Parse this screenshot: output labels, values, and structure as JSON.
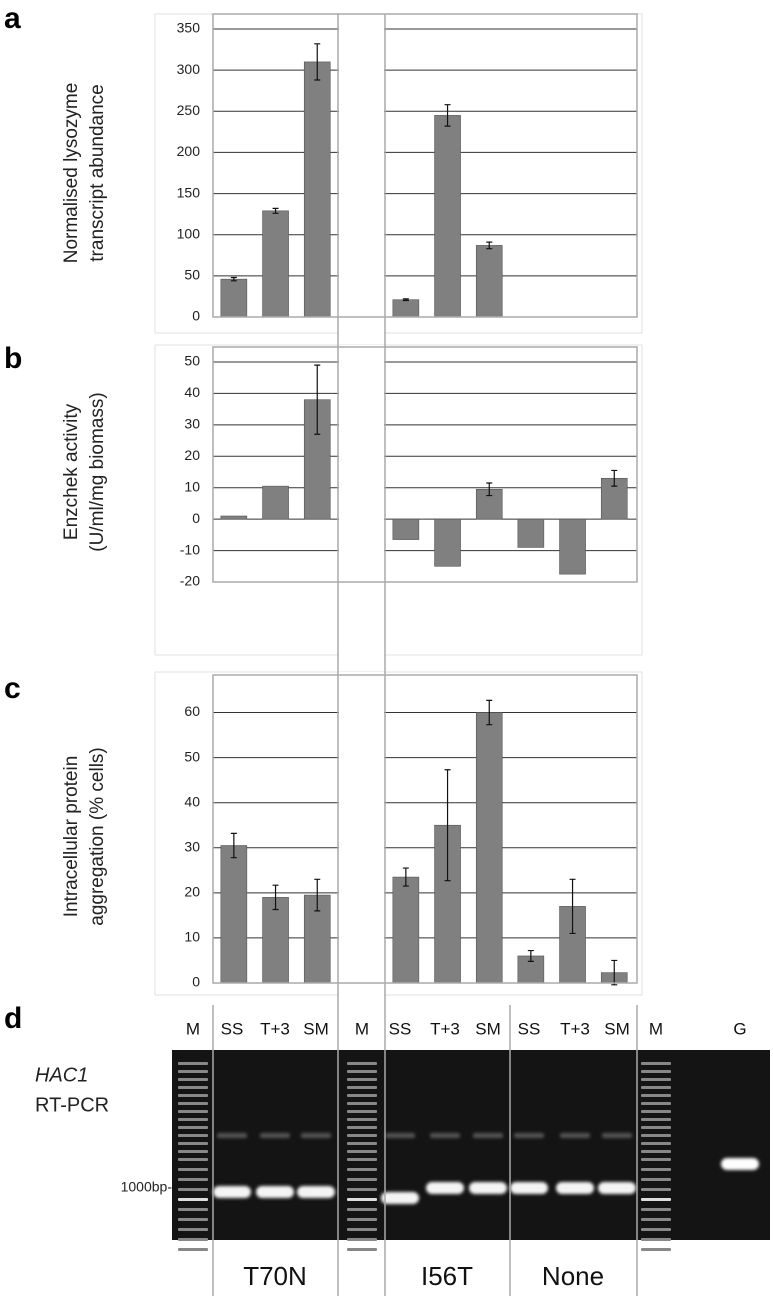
{
  "chart_data": [
    {
      "type": "bar",
      "panel": "a",
      "ylabel": [
        "Normalised lysozyme",
        "transcript abundance"
      ],
      "values": [
        46,
        129,
        310,
        21,
        245,
        87,
        null,
        null,
        null
      ],
      "errors": [
        2,
        3,
        22,
        1,
        13,
        4,
        null,
        null,
        null
      ],
      "color": "#808080",
      "ylim": [
        0,
        350
      ],
      "yticks": [
        0,
        50,
        100,
        150,
        200,
        250,
        300,
        350
      ],
      "grid": true
    },
    {
      "type": "bar",
      "panel": "b",
      "ylabel": [
        "Enzchek activity",
        "(U/ml/mg biomass)"
      ],
      "values": [
        1,
        10.5,
        38,
        -6.5,
        -15,
        9.5,
        -9,
        -17.5,
        13
      ],
      "errors": [
        null,
        null,
        11,
        null,
        null,
        2,
        null,
        null,
        2.5
      ],
      "color": "#808080",
      "ylim": [
        -20,
        50
      ],
      "yticks": [
        -20,
        -10,
        0,
        10,
        20,
        30,
        40,
        50
      ],
      "grid": true
    },
    {
      "type": "bar",
      "panel": "c",
      "ylabel": [
        "Intracellular protein",
        "aggregation (% cells)"
      ],
      "values": [
        30.5,
        19,
        19.5,
        23.5,
        35,
        60,
        6,
        17,
        2.3
      ],
      "errors": [
        2.7,
        2.7,
        3.5,
        2,
        12.3,
        2.7,
        1.2,
        6,
        2.7
      ],
      "color": "#808080",
      "ylim": [
        0,
        65
      ],
      "yticks": [
        0,
        10,
        20,
        30,
        40,
        50,
        60
      ],
      "grid": true
    }
  ],
  "gel": {
    "panel": "d",
    "lanes": [
      "M",
      "SS",
      "T+3",
      "SM",
      "M",
      "SS",
      "T+3",
      "SM",
      "SS",
      "T+3",
      "SM",
      "M",
      "G"
    ],
    "label_lines": [
      "HAC1",
      "RT-PCR"
    ],
    "marker": "1000bp-",
    "groups": [
      "T70N",
      "I56T",
      "None"
    ]
  }
}
